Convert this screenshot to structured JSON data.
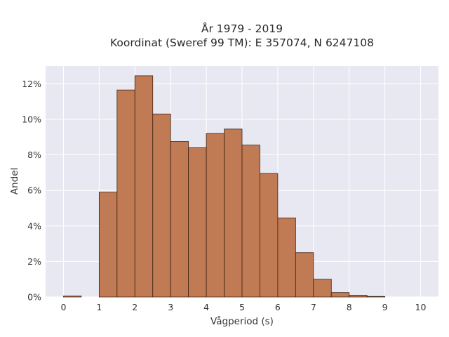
{
  "chart_data": {
    "type": "bar",
    "title_lines": [
      "År 1979 - 2019",
      "Koordinat (Sweref 99 TM): E 357074, N 6247108"
    ],
    "xlabel": "Vågperiod (s)",
    "ylabel": "Andel",
    "x_tick_labels": [
      "0",
      "1",
      "2",
      "3",
      "4",
      "5",
      "6",
      "7",
      "8",
      "9",
      "10"
    ],
    "y_tick_labels": [
      "0%",
      "2%",
      "4%",
      "6%",
      "8%",
      "10%",
      "12%"
    ],
    "xlim": [
      -0.5,
      10.5
    ],
    "ylim": [
      0,
      13
    ],
    "grid": true,
    "bin_width": 0.5,
    "bins_start": [
      0,
      0.5,
      1,
      1.5,
      2,
      2.5,
      3,
      3.5,
      4,
      4.5,
      5,
      5.5,
      6,
      6.5,
      7,
      7.5,
      8,
      8.5,
      9,
      9.5
    ],
    "values": [
      0.05,
      0,
      5.9,
      11.65,
      12.45,
      10.3,
      8.75,
      8.4,
      9.2,
      9.45,
      8.55,
      6.95,
      4.45,
      2.5,
      1.0,
      0.25,
      0.1,
      0.03,
      0,
      0
    ],
    "colors": {
      "bar_fill": "#c07a54",
      "bar_edge": "#3d2414",
      "plot_background": "#e8e8f2",
      "grid": "#ffffff"
    }
  }
}
